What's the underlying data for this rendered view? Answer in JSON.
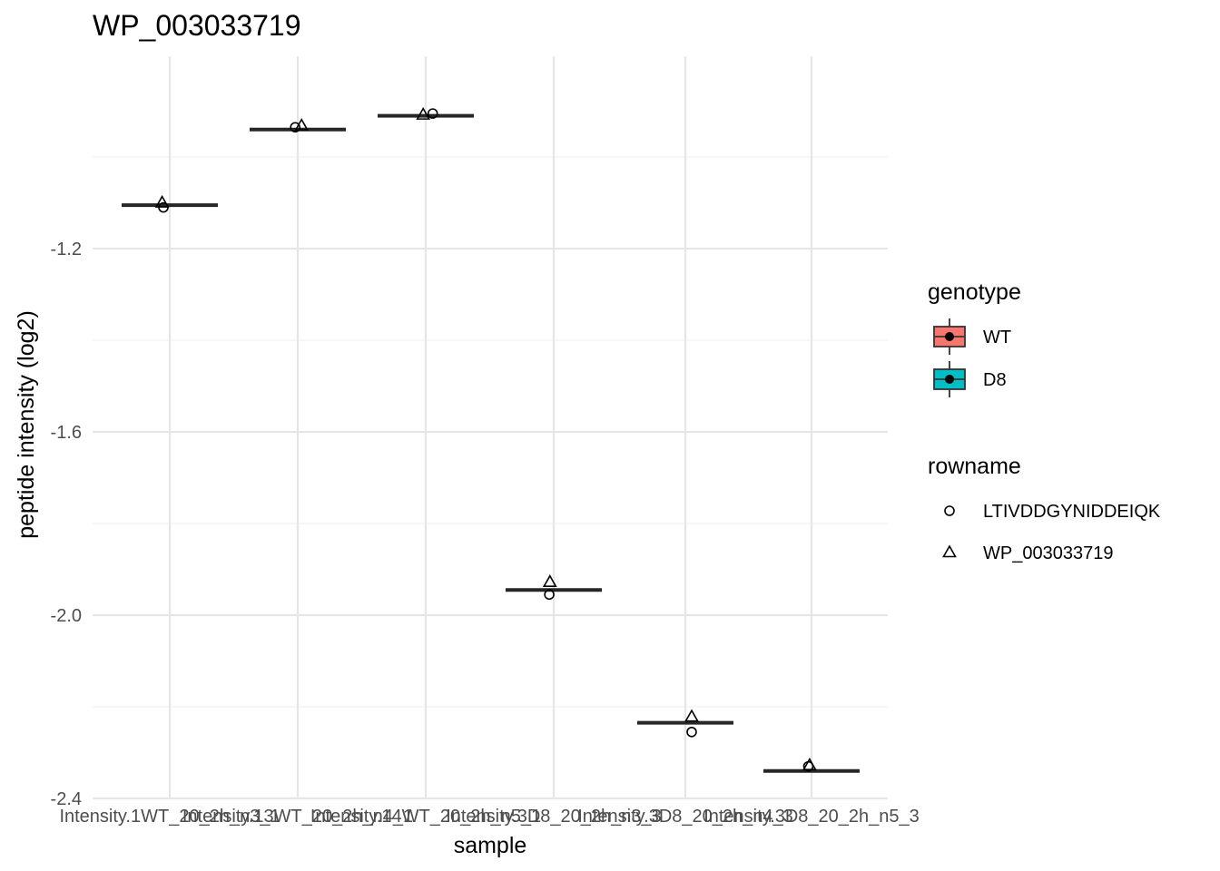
{
  "chart_data": {
    "type": "box",
    "title": "WP_003033719",
    "xlabel": "sample",
    "ylabel": "peptide intensity (log2)",
    "ylim": [
      -2.4,
      -0.78
    ],
    "yticks": [
      "-1.2",
      "-1.6",
      "-2.0",
      "-2.4"
    ],
    "ytick_values": [
      -1.2,
      -1.6,
      -2.0,
      -2.4
    ],
    "yminor_values": [
      -1.0,
      -1.4,
      -1.8,
      -2.2
    ],
    "categories": [
      "Intensity.1WT_20_2h_n3_1",
      "Intensity.13WT_20_2h_n4_1",
      "Intensity.14WT_20_2h_n5_1",
      "Intensity.3D8_20_2h_n3_3",
      "Intensity.3D8_20_2h_n4_3",
      "Intensity.3D8_20_2h_n5_3"
    ],
    "category_genotype": [
      "WT",
      "WT",
      "WT",
      "D8",
      "D8",
      "D8"
    ],
    "medians": [
      -1.105,
      -0.94,
      -0.91,
      -1.945,
      -2.235,
      -2.34
    ],
    "series": [
      {
        "name": "LTIVDDGYNIDDEIQK",
        "shape": "circle",
        "values": [
          -1.11,
          -0.935,
          -0.905,
          -1.955,
          -2.255,
          -2.33
        ]
      },
      {
        "name": "WP_003033719",
        "shape": "triangle",
        "values": [
          -1.1,
          -0.932,
          -0.908,
          -1.928,
          -2.222,
          -2.328
        ]
      }
    ],
    "legends": [
      {
        "title": "genotype",
        "entries": [
          {
            "label": "WT",
            "color": "#F8766D"
          },
          {
            "label": "D8",
            "color": "#00BFC4"
          }
        ]
      },
      {
        "title": "rowname",
        "entries": [
          {
            "label": "LTIVDDGYNIDDEIQK",
            "shape": "circle"
          },
          {
            "label": "WP_003033719",
            "shape": "triangle"
          }
        ]
      }
    ],
    "legend_position": "right",
    "grid": true
  }
}
